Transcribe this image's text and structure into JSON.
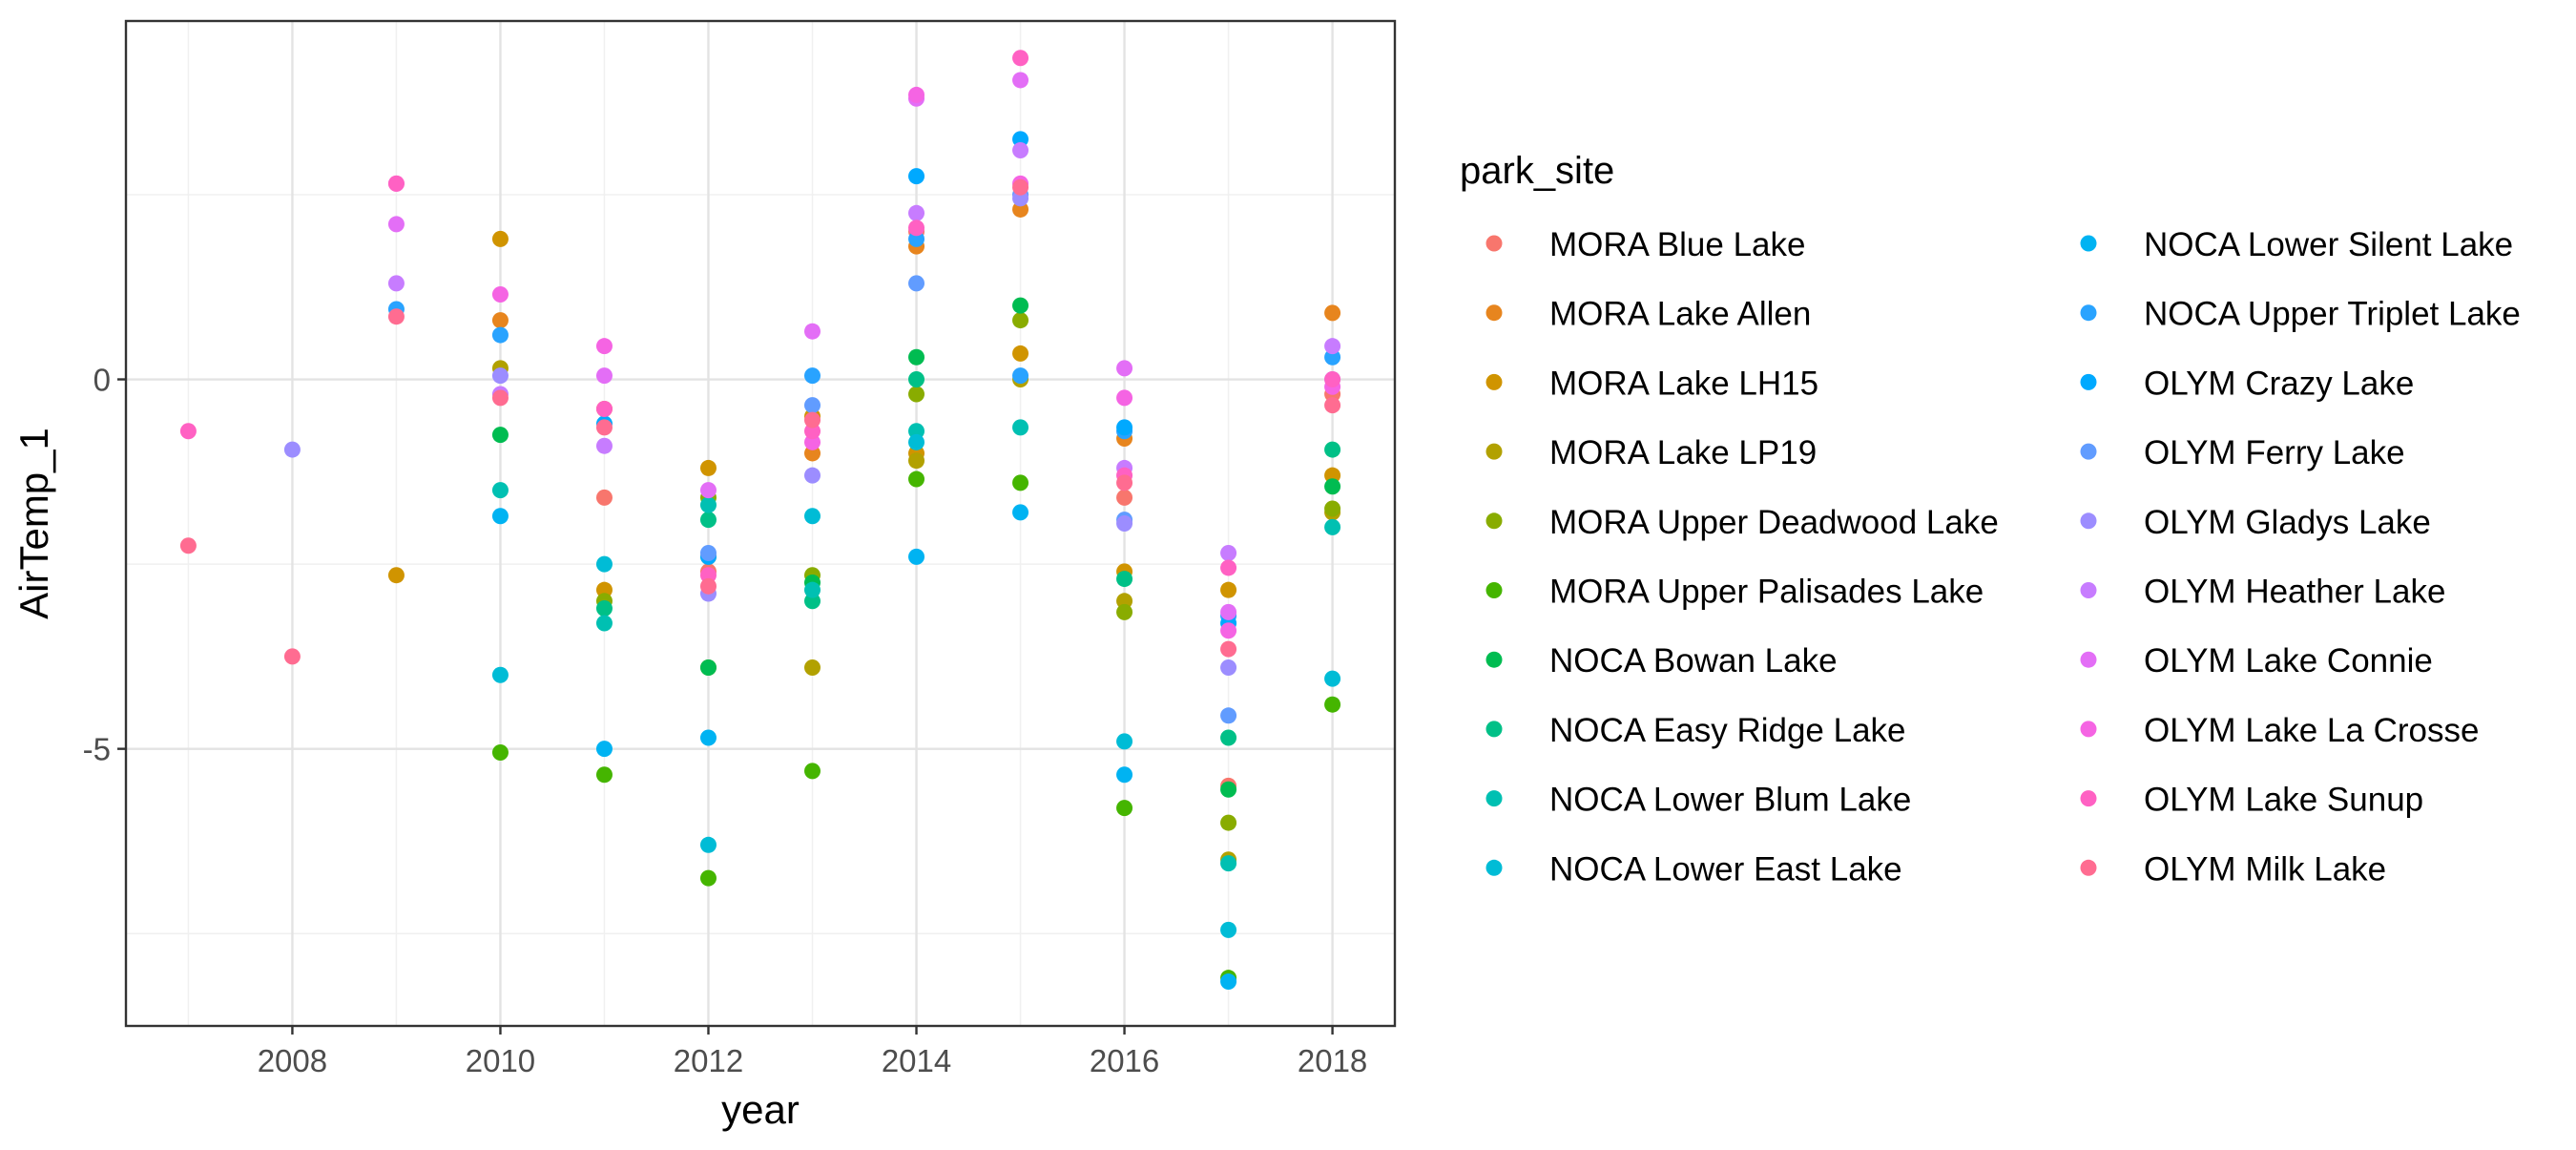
{
  "chart_data": {
    "type": "scatter",
    "title": "",
    "xlabel": "year",
    "ylabel": "AirTemp_1",
    "xlim": [
      2006.4,
      2018.6
    ],
    "ylim": [
      -8.75,
      4.85
    ],
    "x_ticks": [
      2008,
      2010,
      2012,
      2014,
      2016,
      2018
    ],
    "x_tick_labels": [
      "2008",
      "2010",
      "2012",
      "2014",
      "2016",
      "2018"
    ],
    "y_ticks": [
      -5,
      0
    ],
    "y_tick_labels": [
      "-5",
      "0"
    ],
    "grid": true,
    "legend": {
      "title": "park_site",
      "position": "right",
      "columns": 2
    },
    "series": [
      {
        "name": "MORA Blue Lake",
        "color": "#F8766D",
        "points": [
          [
            2011,
            -1.6
          ],
          [
            2012,
            -2.6
          ],
          [
            2014,
            2.0
          ],
          [
            2016,
            -1.6
          ],
          [
            2017,
            -5.5
          ],
          [
            2018,
            -0.2
          ]
        ]
      },
      {
        "name": "MORA Lake Allen",
        "color": "#E7851E",
        "points": [
          [
            2010,
            0.8
          ],
          [
            2011,
            -0.4
          ],
          [
            2012,
            -2.4
          ],
          [
            2013,
            -1.0
          ],
          [
            2014,
            1.8
          ],
          [
            2015,
            2.3
          ],
          [
            2016,
            -0.8
          ],
          [
            2018,
            0.9
          ]
        ]
      },
      {
        "name": "MORA Lake LH15",
        "color": "#D09400",
        "points": [
          [
            2009,
            -2.65
          ],
          [
            2010,
            1.9
          ],
          [
            2011,
            -2.85
          ],
          [
            2012,
            -1.2
          ],
          [
            2013,
            -0.5
          ],
          [
            2014,
            -1.0
          ],
          [
            2015,
            0.35
          ],
          [
            2016,
            -2.6
          ],
          [
            2017,
            -2.85
          ],
          [
            2018,
            -1.3
          ]
        ]
      },
      {
        "name": "MORA Lake LP19",
        "color": "#B2A100",
        "points": [
          [
            2010,
            0.15
          ],
          [
            2012,
            -3.9
          ],
          [
            2013,
            -3.9
          ],
          [
            2014,
            -1.1
          ],
          [
            2015,
            0.0
          ],
          [
            2016,
            -3.0
          ],
          [
            2017,
            -6.5
          ],
          [
            2018,
            -1.8
          ]
        ]
      },
      {
        "name": "MORA Upper Deadwood Lake",
        "color": "#89AC00",
        "points": [
          [
            2011,
            -3.0
          ],
          [
            2012,
            -1.6
          ],
          [
            2013,
            -2.65
          ],
          [
            2014,
            -0.2
          ],
          [
            2015,
            0.8
          ],
          [
            2016,
            -3.15
          ],
          [
            2017,
            -6.0
          ],
          [
            2018,
            -1.75
          ]
        ]
      },
      {
        "name": "MORA Upper Palisades Lake",
        "color": "#45B500",
        "points": [
          [
            2010,
            -5.05
          ],
          [
            2011,
            -5.35
          ],
          [
            2012,
            -6.75
          ],
          [
            2013,
            -5.3
          ],
          [
            2014,
            -1.35
          ],
          [
            2015,
            -1.4
          ],
          [
            2016,
            -5.8
          ],
          [
            2017,
            -8.1
          ],
          [
            2018,
            -4.4
          ]
        ]
      },
      {
        "name": "NOCA Bowan Lake",
        "color": "#00BC51",
        "points": [
          [
            2010,
            -0.75
          ],
          [
            2012,
            -3.9
          ],
          [
            2013,
            -2.75
          ],
          [
            2014,
            0.3
          ],
          [
            2015,
            1.0
          ],
          [
            2017,
            -5.55
          ],
          [
            2018,
            -1.45
          ]
        ]
      },
      {
        "name": "NOCA Easy Ridge Lake",
        "color": "#00C087",
        "points": [
          [
            2011,
            -3.1
          ],
          [
            2012,
            -1.9
          ],
          [
            2013,
            -3.0
          ],
          [
            2014,
            0.0
          ],
          [
            2016,
            -2.7
          ],
          [
            2017,
            -4.85
          ],
          [
            2018,
            -0.95
          ]
        ]
      },
      {
        "name": "NOCA Lower Blum Lake",
        "color": "#00C0B2",
        "points": [
          [
            2010,
            -1.5
          ],
          [
            2011,
            -3.3
          ],
          [
            2012,
            -1.7
          ],
          [
            2013,
            -2.85
          ],
          [
            2014,
            -0.7
          ],
          [
            2015,
            -0.65
          ],
          [
            2017,
            -6.55
          ],
          [
            2018,
            -2.0
          ]
        ]
      },
      {
        "name": "NOCA Lower East Lake",
        "color": "#00BCD6",
        "points": [
          [
            2010,
            -4.0
          ],
          [
            2011,
            -2.5
          ],
          [
            2012,
            -6.3
          ],
          [
            2013,
            -1.85
          ],
          [
            2014,
            -0.85
          ],
          [
            2016,
            -4.9
          ],
          [
            2017,
            -7.45
          ],
          [
            2018,
            -4.05
          ]
        ]
      },
      {
        "name": "NOCA Lower Silent Lake",
        "color": "#00B3F2",
        "points": [
          [
            2010,
            -1.85
          ],
          [
            2011,
            -5.0
          ],
          [
            2012,
            -4.85
          ],
          [
            2014,
            -2.4
          ],
          [
            2015,
            -1.8
          ],
          [
            2016,
            -5.35
          ],
          [
            2017,
            -8.15
          ]
        ]
      },
      {
        "name": "NOCA Upper Triplet Lake",
        "color": "#29A3FF",
        "points": [
          [
            2009,
            0.95
          ],
          [
            2010,
            0.6
          ],
          [
            2013,
            0.05
          ],
          [
            2014,
            1.9
          ],
          [
            2015,
            0.05
          ],
          [
            2016,
            -0.7
          ],
          [
            2017,
            -3.2
          ],
          [
            2018,
            0.3
          ]
        ]
      },
      {
        "name": "OLYM Crazy Lake",
        "color": "#00A9FF",
        "points": [
          [
            2011,
            -0.6
          ],
          [
            2012,
            -2.4
          ],
          [
            2014,
            2.75
          ],
          [
            2015,
            3.25
          ],
          [
            2016,
            -0.65
          ],
          [
            2017,
            -3.3
          ]
        ]
      },
      {
        "name": "OLYM Ferry Lake",
        "color": "#619CFF",
        "points": [
          [
            2012,
            -2.35
          ],
          [
            2013,
            -0.35
          ],
          [
            2014,
            1.3
          ],
          [
            2015,
            2.5
          ],
          [
            2016,
            -1.9
          ],
          [
            2017,
            -4.55
          ]
        ]
      },
      {
        "name": "OLYM Gladys Lake",
        "color": "#9C8DFF",
        "points": [
          [
            2008,
            -0.95
          ],
          [
            2010,
            0.05
          ],
          [
            2012,
            -2.9
          ],
          [
            2013,
            -1.3
          ],
          [
            2015,
            2.45
          ],
          [
            2016,
            -1.95
          ],
          [
            2017,
            -3.9
          ],
          [
            2018,
            0.0
          ]
        ]
      },
      {
        "name": "OLYM Heather Lake",
        "color": "#C77CFF",
        "points": [
          [
            2009,
            1.3
          ],
          [
            2010,
            -0.2
          ],
          [
            2011,
            -0.9
          ],
          [
            2014,
            2.25
          ],
          [
            2015,
            3.1
          ],
          [
            2016,
            -1.2
          ],
          [
            2017,
            -2.35
          ],
          [
            2018,
            0.45
          ]
        ]
      },
      {
        "name": "OLYM Lake Connie",
        "color": "#E36EF6",
        "points": [
          [
            2009,
            2.1
          ],
          [
            2011,
            0.05
          ],
          [
            2012,
            -1.5
          ],
          [
            2013,
            0.65
          ],
          [
            2014,
            3.8
          ],
          [
            2015,
            4.05
          ],
          [
            2016,
            0.15
          ],
          [
            2017,
            -3.15
          ]
        ]
      },
      {
        "name": "OLYM Lake La Crosse",
        "color": "#F564E3",
        "points": [
          [
            2009,
            2.65
          ],
          [
            2010,
            1.15
          ],
          [
            2011,
            0.45
          ],
          [
            2013,
            -0.85
          ],
          [
            2014,
            3.85
          ],
          [
            2015,
            2.65
          ],
          [
            2016,
            -0.25
          ],
          [
            2017,
            -3.4
          ],
          [
            2018,
            -0.1
          ]
        ]
      },
      {
        "name": "OLYM Lake Sunup",
        "color": "#FF61C3",
        "points": [
          [
            2007,
            -0.7
          ],
          [
            2009,
            2.65
          ],
          [
            2011,
            -0.4
          ],
          [
            2012,
            -2.65
          ],
          [
            2013,
            -0.7
          ],
          [
            2014,
            2.05
          ],
          [
            2015,
            4.35
          ],
          [
            2016,
            -1.3
          ],
          [
            2017,
            -2.55
          ],
          [
            2018,
            0.0
          ]
        ]
      },
      {
        "name": "OLYM Milk Lake",
        "color": "#FF6C91",
        "points": [
          [
            2007,
            -2.25
          ],
          [
            2008,
            -3.75
          ],
          [
            2009,
            0.85
          ],
          [
            2010,
            -0.25
          ],
          [
            2011,
            -0.65
          ],
          [
            2012,
            -2.8
          ],
          [
            2013,
            -0.55
          ],
          [
            2015,
            2.6
          ],
          [
            2016,
            -1.4
          ],
          [
            2017,
            -3.65
          ],
          [
            2018,
            -0.35
          ]
        ]
      }
    ]
  }
}
